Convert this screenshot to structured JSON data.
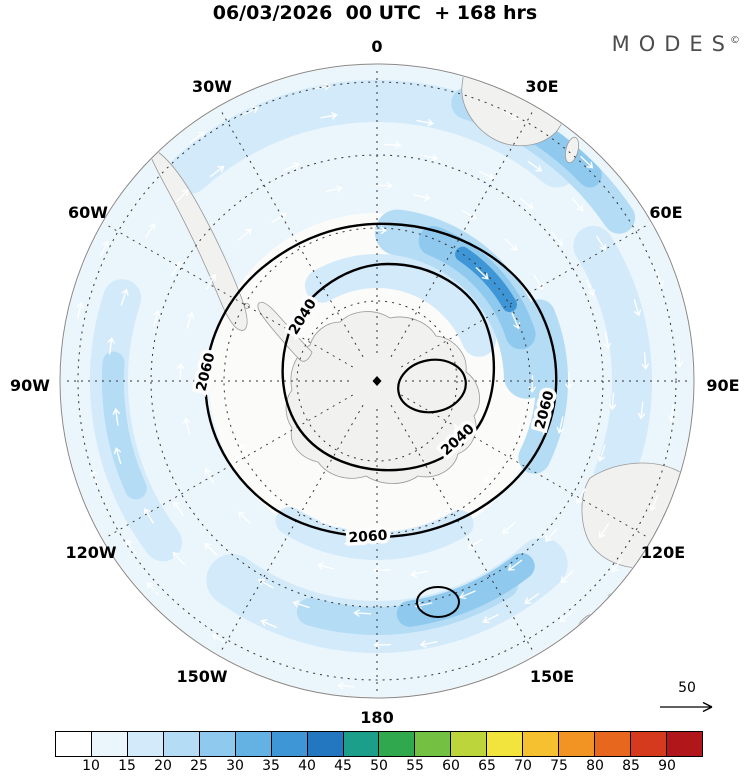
{
  "title": "06/03/2026  00 UTC  + 168 hrs",
  "logo": {
    "text": "MODES",
    "sup": "©"
  },
  "map": {
    "lon_labels": {
      "n0": "0",
      "e30": "30E",
      "e60": "60E",
      "e90": "90E",
      "e120": "120E",
      "e150": "150E",
      "s180": "180",
      "w150": "150W",
      "w120": "120W",
      "w90": "90W",
      "w60": "60W",
      "w30": "30W"
    },
    "contour_low": "2040",
    "contour_high": "2060"
  },
  "scale": {
    "value": "50"
  },
  "colorbar": {
    "tick_labels": [
      "10",
      "15",
      "20",
      "25",
      "30",
      "35",
      "40",
      "45",
      "50",
      "55",
      "60",
      "65",
      "70",
      "75",
      "80",
      "85",
      "90"
    ],
    "colors": [
      "#ffffff",
      "#eaf5fc",
      "#d3eafa",
      "#b4dcf5",
      "#8fc9ee",
      "#64b1e4",
      "#3e96d6",
      "#2376c0",
      "#1b9e8a",
      "#2fa84e",
      "#74c043",
      "#bcd53a",
      "#f2e43c",
      "#f6c130",
      "#f29424",
      "#e7671e",
      "#d63a1e",
      "#b0161a"
    ]
  },
  "chart_data": {
    "type": "heatmap",
    "title": "06/03/2026 00 UTC + 168 hrs",
    "projection": "south-polar-stereographic",
    "shaded_variable": "wind speed (filled shading with white wind vectors)",
    "colorbar_tick_values": [
      10,
      15,
      20,
      25,
      30,
      35,
      40,
      45,
      50,
      55,
      60,
      65,
      70,
      75,
      80,
      85,
      90
    ],
    "colorbar_colors": [
      "#ffffff",
      "#eaf5fc",
      "#d3eafa",
      "#b4dcf5",
      "#8fc9ee",
      "#64b1e4",
      "#3e96d6",
      "#2376c0",
      "#1b9e8a",
      "#2fa84e",
      "#74c043",
      "#bcd53a",
      "#f2e43c",
      "#f6c130",
      "#f29424",
      "#e7671e",
      "#d63a1e",
      "#b0161a"
    ],
    "contour_variable": "geopotential height (black contours)",
    "contour_levels_labeled": [
      2040,
      2060
    ],
    "vector_reference_value": 50,
    "longitude_ring_labels": [
      "0",
      "30E",
      "60E",
      "90E",
      "120E",
      "150E",
      "180",
      "150W",
      "120W",
      "90W",
      "60W",
      "30W"
    ],
    "legend_position": "bottom",
    "source_label": "MODES"
  }
}
